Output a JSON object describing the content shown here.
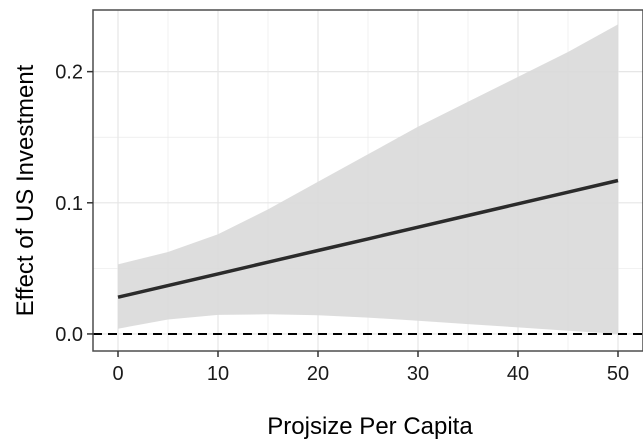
{
  "chart_data": {
    "type": "line",
    "title": "",
    "xlabel": "Projsize Per Capita",
    "ylabel": "Effect of US Investment",
    "xlim": [
      -2.5,
      52.5
    ],
    "ylim": [
      -0.013,
      0.247
    ],
    "x_ticks": [
      0,
      10,
      20,
      30,
      40,
      50
    ],
    "x_tick_labels": [
      "0",
      "10",
      "20",
      "30",
      "40",
      "50"
    ],
    "y_ticks": [
      0.0,
      0.1,
      0.2
    ],
    "y_tick_labels": [
      "0.0",
      "0.1",
      "0.2"
    ],
    "grid": true,
    "legend": "none",
    "reference_line": {
      "y": 0.0,
      "style": "dashed",
      "color": "#000000"
    },
    "series": [
      {
        "x": [
          0,
          5,
          10,
          15,
          20,
          25,
          30,
          35,
          40,
          45,
          50
        ],
        "y": [
          0.028,
          0.0369,
          0.0458,
          0.0547,
          0.0636,
          0.0725,
          0.0814,
          0.0903,
          0.0992,
          0.1081,
          0.117
        ],
        "lower": [
          0.004,
          0.011,
          0.0145,
          0.015,
          0.0142,
          0.0125,
          0.01,
          0.0075,
          0.005,
          0.0025,
          0.0
        ],
        "upper": [
          0.053,
          0.0625,
          0.076,
          0.095,
          0.116,
          0.137,
          0.158,
          0.177,
          0.196,
          0.215,
          0.236
        ],
        "color": "#2b2b2b"
      }
    ],
    "colors": {
      "band": "#d9d9d9",
      "grid": "#e6e6e6",
      "panel_border": "#4d4d4d",
      "line": "#2b2b2b"
    }
  }
}
